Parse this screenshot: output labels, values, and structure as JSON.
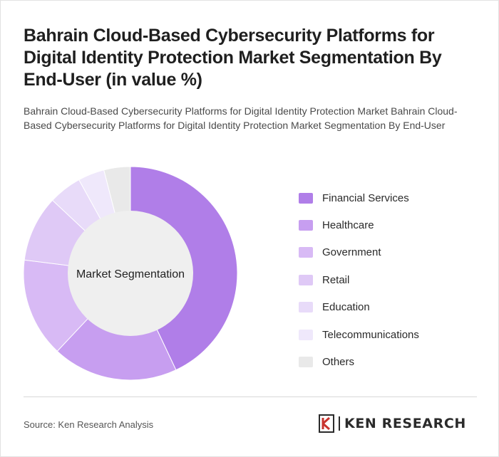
{
  "header": {
    "title": "Bahrain Cloud-Based Cybersecurity Platforms for Digital Identity Protection Market Segmentation By End-User (in value %)",
    "subtitle": "Bahrain Cloud-Based Cybersecurity Platforms for Digital Identity Protection Market Bahrain Cloud-Based Cybersecurity Platforms for Digital Identity Protection Market Segmentation By End-User"
  },
  "chart_data": {
    "type": "pie",
    "variant": "donut",
    "center_label": "Market Segmentation",
    "categories": [
      "Financial Services",
      "Healthcare",
      "Government",
      "Retail",
      "Education",
      "Telecommunications",
      "Others"
    ],
    "values": [
      43,
      19,
      15,
      10,
      5,
      4,
      4
    ],
    "colors": [
      "#b07ee8",
      "#c79ef0",
      "#d8baf5",
      "#dfc9f6",
      "#e8dbf9",
      "#efe8fb",
      "#e9e9e9"
    ],
    "legend_position": "right"
  },
  "footer": {
    "source": "Source: Ken Research Analysis",
    "logo_text": "KEN RESEARCH"
  }
}
